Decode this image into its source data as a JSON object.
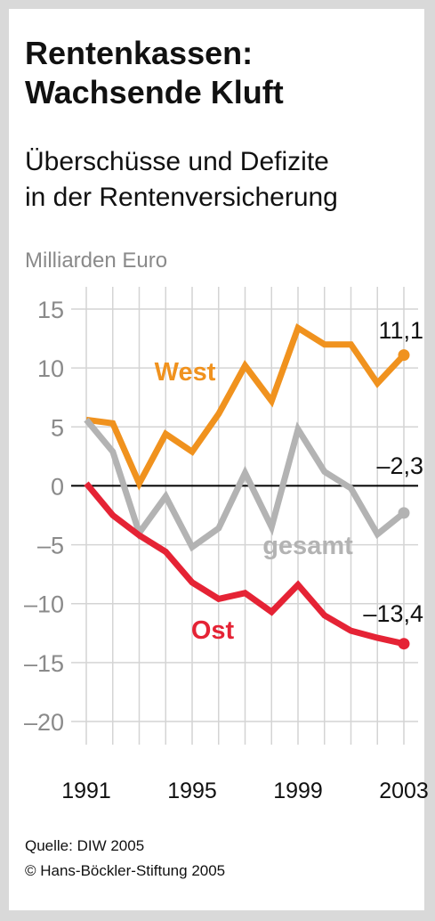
{
  "title_line1": "Rentenkassen:",
  "title_line2": "Wachsende Kluft",
  "subtitle_line1": "Überschüsse und Defizite",
  "subtitle_line2": "in der Rentenversicherung",
  "unit_label": "Milliarden Euro",
  "source_line1": "Quelle: DIW 2005",
  "source_line2": "© Hans-Böckler-Stiftung 2005",
  "chart_data": {
    "type": "line",
    "ylabel": "Milliarden Euro",
    "ylim": [
      -20,
      15
    ],
    "yticks": [
      15,
      10,
      5,
      0,
      -5,
      -10,
      -15,
      -20
    ],
    "ytick_labels": [
      "15",
      "10",
      "5",
      "0",
      "–5",
      "–10",
      "–15",
      "–20"
    ],
    "x": [
      1991,
      1992,
      1993,
      1994,
      1995,
      1996,
      1997,
      1998,
      1999,
      2000,
      2001,
      2002,
      2003
    ],
    "xtick_values": [
      1991,
      1995,
      1999,
      2003
    ],
    "xtick_labels": [
      "1991",
      "1995",
      "1999",
      "2003"
    ],
    "grid": true,
    "series": [
      {
        "name": "West",
        "color": "#f0921e",
        "values": [
          5.6,
          5.3,
          0.2,
          4.4,
          2.9,
          6.1,
          10.2,
          7.2,
          13.4,
          12.0,
          12.0,
          8.7,
          11.1
        ],
        "end_label": "11,1"
      },
      {
        "name": "gesamt",
        "color": "#b3b3b3",
        "values": [
          5.6,
          2.9,
          -4.0,
          -0.9,
          -5.2,
          -3.6,
          1.1,
          -3.5,
          4.8,
          1.2,
          -0.2,
          -4.1,
          -2.3
        ],
        "end_label": "–2,3"
      },
      {
        "name": "Ost",
        "color": "#e52335",
        "values": [
          0.2,
          -2.5,
          -4.2,
          -5.6,
          -8.2,
          -9.6,
          -9.1,
          -10.7,
          -8.4,
          -11.0,
          -12.3,
          -12.9,
          -13.4
        ],
        "end_label": "–13,4"
      }
    ]
  }
}
